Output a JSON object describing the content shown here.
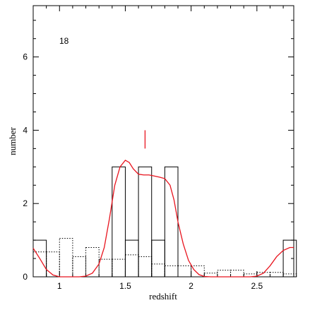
{
  "chart_data": {
    "type": "bar",
    "xlabel": "redshift",
    "ylabel": "number",
    "xlim": [
      0.8,
      2.78
    ],
    "ylim": [
      0,
      7.4
    ],
    "x_ticks": [
      1,
      1.5,
      2,
      2.5
    ],
    "x_tick_labels": [
      "1",
      "1.5",
      "2",
      "2.5"
    ],
    "y_ticks": [
      0,
      2,
      4,
      6
    ],
    "y_tick_labels": [
      "0",
      "2",
      "4",
      "6"
    ],
    "annotation": "18",
    "bin_width": 0.1,
    "series": [
      {
        "style": "solid-black-histogram",
        "bin_starts": [
          0.8,
          0.9,
          1.0,
          1.1,
          1.2,
          1.3,
          1.4,
          1.5,
          1.6,
          1.7,
          1.8,
          1.9,
          2.0,
          2.1,
          2.2,
          2.3,
          2.4,
          2.5,
          2.6,
          2.7
        ],
        "values": [
          1,
          0,
          0,
          0,
          0,
          0,
          3,
          1,
          3,
          1,
          3,
          0,
          0,
          0,
          0,
          0,
          0,
          0,
          0,
          1
        ]
      },
      {
        "style": "dotted-black-histogram",
        "bin_starts": [
          0.8,
          0.9,
          1.0,
          1.1,
          1.2,
          1.3,
          1.4,
          1.5,
          1.6,
          1.7,
          1.8,
          1.9,
          2.0,
          2.1,
          2.2,
          2.3,
          2.4,
          2.5,
          2.6,
          2.7
        ],
        "values": [
          0.68,
          0.68,
          1.05,
          0.55,
          0.8,
          0.48,
          0.48,
          0.6,
          0.55,
          0.35,
          0.3,
          0.3,
          0.3,
          0.1,
          0.18,
          0.18,
          0.08,
          0.12,
          0.12,
          0.08
        ]
      },
      {
        "style": "red-smooth-curve",
        "x": [
          0.8,
          0.85,
          0.9,
          0.95,
          1.0,
          1.05,
          1.1,
          1.15,
          1.2,
          1.25,
          1.3,
          1.34,
          1.38,
          1.42,
          1.46,
          1.5,
          1.53,
          1.56,
          1.6,
          1.64,
          1.68,
          1.72,
          1.76,
          1.8,
          1.84,
          1.87,
          1.9,
          1.94,
          1.98,
          2.02,
          2.06,
          2.1,
          2.15,
          2.2,
          2.25,
          2.3,
          2.35,
          2.4,
          2.45,
          2.5,
          2.55,
          2.6,
          2.65,
          2.7,
          2.75,
          2.78
        ],
        "y": [
          0.78,
          0.5,
          0.2,
          0.05,
          0.0,
          0.0,
          0.0,
          0.0,
          0.02,
          0.1,
          0.35,
          0.8,
          1.6,
          2.5,
          3.0,
          3.18,
          3.12,
          2.95,
          2.8,
          2.78,
          2.78,
          2.75,
          2.72,
          2.68,
          2.5,
          2.1,
          1.5,
          0.9,
          0.45,
          0.2,
          0.06,
          0.01,
          0.0,
          0.0,
          0.0,
          0.0,
          0.0,
          0.0,
          0.0,
          0.02,
          0.1,
          0.3,
          0.55,
          0.72,
          0.8,
          0.8
        ]
      }
    ],
    "marker": {
      "x": 1.65,
      "y_range": [
        3.5,
        4.0
      ]
    }
  }
}
